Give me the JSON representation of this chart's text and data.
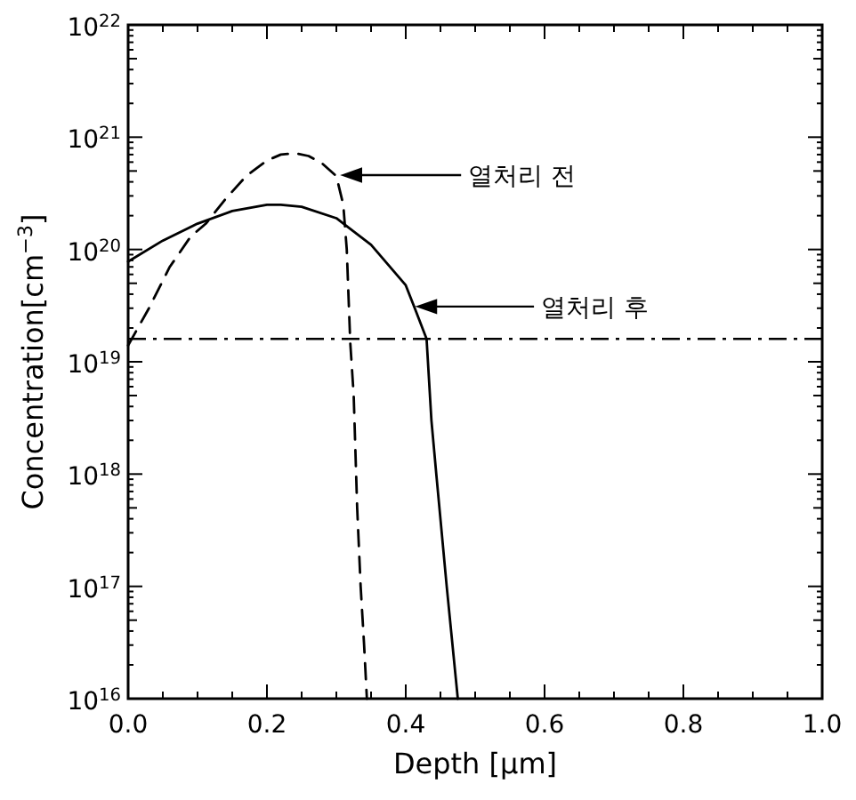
{
  "chart_data": {
    "type": "line",
    "xlabel": "Depth [μm]",
    "ylabel": "Concentration[cm$^{−3}$]",
    "log": "y",
    "xlim": [
      0,
      1.0
    ],
    "ylim": [
      1e+16,
      1e+22
    ],
    "xticks": [
      {
        "value": 0,
        "label": "0.0"
      },
      {
        "value": 0.05,
        "label": null
      },
      {
        "value": 0.1,
        "label": null
      },
      {
        "value": 0.15,
        "label": null
      },
      {
        "value": 0.2,
        "label": "0.2"
      },
      {
        "value": 0.25,
        "label": null
      },
      {
        "value": 0.3,
        "label": null
      },
      {
        "value": 0.35,
        "label": null
      },
      {
        "value": 0.4,
        "label": "0.4"
      },
      {
        "value": 0.45,
        "label": null
      },
      {
        "value": 0.5,
        "label": null
      },
      {
        "value": 0.55,
        "label": null
      },
      {
        "value": 0.6,
        "label": "0.6"
      },
      {
        "value": 0.65,
        "label": null
      },
      {
        "value": 0.7,
        "label": null
      },
      {
        "value": 0.75,
        "label": null
      },
      {
        "value": 0.8,
        "label": "0.8"
      },
      {
        "value": 0.85,
        "label": null
      },
      {
        "value": 0.9,
        "label": null
      },
      {
        "value": 0.95,
        "label": null
      },
      {
        "value": 1.0,
        "label": "1.0"
      }
    ],
    "yticks": [
      {
        "value": 1e+16,
        "label": "10$^{16}$"
      },
      {
        "value": 5e+16,
        "label": null
      },
      {
        "value": 1e+17,
        "label": "10$^{17}$"
      },
      {
        "value": 5e+17,
        "label": null
      },
      {
        "value": 1e+18,
        "label": "10$^{18}$"
      },
      {
        "value": 5e+18,
        "label": null
      },
      {
        "value": 1e+19,
        "label": "10$^{19}$"
      },
      {
        "value": 5e+19,
        "label": null
      },
      {
        "value": 1e+20,
        "label": "10$^{20}$"
      },
      {
        "value": 5e+20,
        "label": null
      },
      {
        "value": 1e+21,
        "label": "10$^{21}$"
      },
      {
        "value": 5e+21,
        "label": null
      },
      {
        "value": 1e+22,
        "label": "10$^{22}$"
      }
    ],
    "series": [
      {
        "color": "#000000",
        "line_style": "dashed",
        "x": [
          0.0,
          0.03,
          0.06,
          0.09,
          0.112,
          0.14,
          0.17,
          0.2,
          0.22,
          0.24,
          0.26,
          0.28,
          0.3,
          0.31,
          0.315,
          0.32,
          0.325,
          0.33,
          0.335,
          0.34,
          0.344
        ],
        "values": [
          1.4e+19,
          3e+19,
          7e+19,
          1.3e+20,
          1.7e+20,
          2.8e+20,
          4.5e+20,
          6.2e+20,
          7e+20,
          7.2e+20,
          6.8e+20,
          5.8e+20,
          4.5e+20,
          2.5e+20,
          1e+20,
          1.5e+19,
          5e+18,
          5e+17,
          1e+17,
          3e+16,
          1e+16
        ]
      },
      {
        "color": "#000000",
        "line_style": "solid",
        "x": [
          0.0,
          0.05,
          0.1,
          0.15,
          0.2,
          0.22,
          0.25,
          0.3,
          0.35,
          0.4,
          0.413,
          0.43,
          0.437,
          0.444,
          0.459,
          0.475
        ],
        "values": [
          7.8e+19,
          1.2e+20,
          1.7e+20,
          2.2e+20,
          2.5e+20,
          2.5e+20,
          2.4e+20,
          1.9e+20,
          1.1e+20,
          4.8e+19,
          3e+19,
          1.6e+19,
          3e+18,
          1e+18,
          1e+17,
          1e+16
        ]
      }
    ],
    "ref_lines": [
      {
        "axis": "y",
        "value": 1.6e+19,
        "line_style": "dashdot",
        "color": "#000000"
      }
    ],
    "annotations": [
      "열처리 전",
      "열처리 후"
    ],
    "grid": false
  }
}
